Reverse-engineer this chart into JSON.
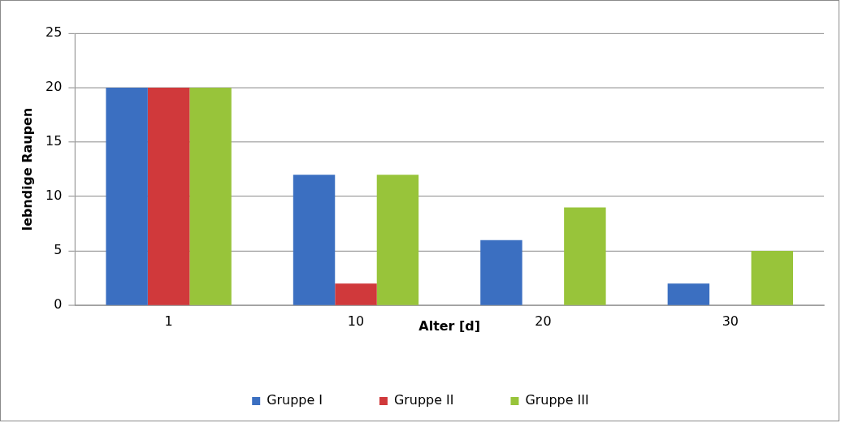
{
  "chart_data": {
    "type": "bar",
    "xlabel": "Alter [d]",
    "ylabel": "lebndige Raupen",
    "categories": [
      "1",
      "10",
      "20",
      "30"
    ],
    "series": [
      {
        "name": "Gruppe I",
        "color": "#3b6fc1",
        "values": [
          20,
          12,
          6,
          2
        ]
      },
      {
        "name": "Gruppe II",
        "color": "#d0393b",
        "values": [
          20,
          2,
          0,
          0
        ]
      },
      {
        "name": "Gruppe III",
        "color": "#98c43a",
        "values": [
          20,
          12,
          9,
          5
        ]
      }
    ],
    "ylim": [
      0,
      25
    ],
    "yticks": [
      0,
      5,
      10,
      15,
      20,
      25
    ],
    "grid": "y",
    "legend": "bottom"
  }
}
